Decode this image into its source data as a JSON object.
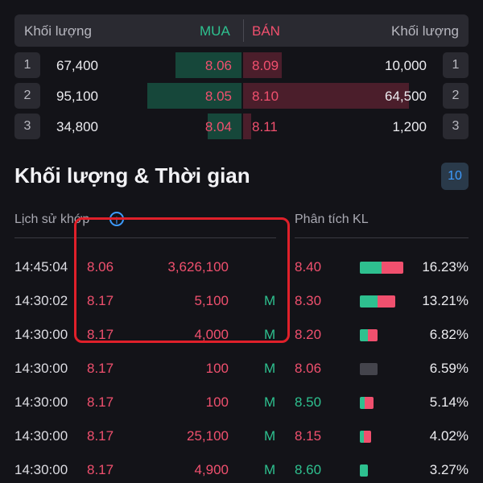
{
  "orderbook": {
    "header": {
      "vol_left": "Khối lượng",
      "mua": "MUA",
      "ban": "BÁN",
      "vol_right": "Khối lượng"
    },
    "rows": [
      {
        "idx": "1",
        "buy_vol": "67,400",
        "buy_price": "8.06",
        "sell_price": "8.09",
        "sell_vol": "10,000"
      },
      {
        "idx": "2",
        "buy_vol": "95,100",
        "buy_price": "8.05",
        "sell_price": "8.10",
        "sell_vol": "64,500"
      },
      {
        "idx": "3",
        "buy_vol": "34,800",
        "buy_price": "8.04",
        "sell_price": "8.11",
        "sell_vol": "1,200"
      }
    ]
  },
  "trades": {
    "title": "Khối lượng & Thời gian",
    "count_badge": "10",
    "tab_history": "Lịch sử khớp",
    "tab_analysis": "Phân tích KL",
    "info_symbol": "i",
    "rows": [
      {
        "time": "14:45:04",
        "price": "8.06",
        "volume": "3,626,100",
        "side": "",
        "level": "8.40",
        "pct": "16.23%"
      },
      {
        "time": "14:30:02",
        "price": "8.17",
        "volume": "5,100",
        "side": "M",
        "level": "8.30",
        "pct": "13.21%"
      },
      {
        "time": "14:30:00",
        "price": "8.17",
        "volume": "4,000",
        "side": "M",
        "level": "8.20",
        "pct": "6.82%"
      },
      {
        "time": "14:30:00",
        "price": "8.17",
        "volume": "100",
        "side": "M",
        "level": "8.06",
        "pct": "6.59%"
      },
      {
        "time": "14:30:00",
        "price": "8.17",
        "volume": "100",
        "side": "M",
        "level": "8.50",
        "pct": "5.14%"
      },
      {
        "time": "14:30:00",
        "price": "8.17",
        "volume": "25,100",
        "side": "M",
        "level": "8.15",
        "pct": "4.02%"
      },
      {
        "time": "14:30:00",
        "price": "8.17",
        "volume": "4,900",
        "side": "M",
        "level": "8.60",
        "pct": "3.27%"
      }
    ]
  },
  "colors": {
    "buy": "#2ec08f",
    "sell": "#f0506e",
    "accent": "#3d9bff",
    "annotation": "#e0202a"
  }
}
